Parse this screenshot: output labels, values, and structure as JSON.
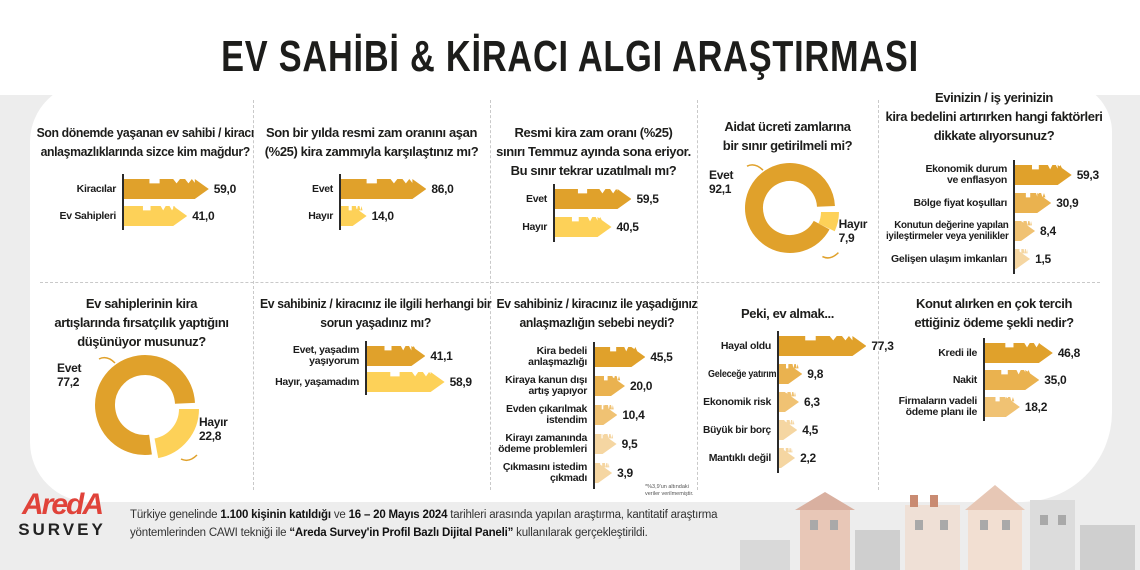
{
  "title": "EV SAHİBİ & KİRACI ALGI ARAŞTIRMASI",
  "colors": {
    "dark": "#e0a12b",
    "yellow": "#fdd158",
    "mid": "#eab24f",
    "light": "#f0c273",
    "lighter": "#f5d6a2",
    "brand_red": "#e0433a"
  },
  "chart_data": [
    {
      "type": "bar",
      "question": "Son dönemde yaşanan ev sahibi / kiracı\nanlaşmazlıklarında sizce kim mağdur?",
      "categories": [
        "Kiracılar",
        "Ev Sahipleri"
      ],
      "values": [
        59.0,
        41.0
      ],
      "labels": [
        "59,0",
        "41,0"
      ]
    },
    {
      "type": "bar",
      "question": "Son bir yılda resmi zam oranını aşan\n(%25) kira zammıyla karşılaştınız mı?",
      "categories": [
        "Evet",
        "Hayır"
      ],
      "values": [
        86.0,
        14.0
      ],
      "labels": [
        "86,0",
        "14,0"
      ]
    },
    {
      "type": "bar",
      "question": "Resmi kira zam oranı (%25)\nsınırı Temmuz ayında sona eriyor.\nBu sınır tekrar uzatılmalı mı?",
      "categories": [
        "Evet",
        "Hayır"
      ],
      "values": [
        59.5,
        40.5
      ],
      "labels": [
        "59,5",
        "40,5"
      ]
    },
    {
      "type": "pie",
      "question": "Aidat ücreti zamlarına\nbir sınır getirilmeli mi?",
      "categories": [
        "Evet",
        "Hayır"
      ],
      "values": [
        92.1,
        7.9
      ],
      "labels": [
        "92,1",
        "7,9"
      ]
    },
    {
      "type": "bar",
      "question": "Evinizin / iş yerinizin\nkira bedelini artırırken hangi faktörleri\ndikkate alıyorsunuz?",
      "categories": [
        "Ekonomik durum\nve enflasyon",
        "Bölge fiyat koşulları",
        "Konutun değerine yapılan\niyileştirmeler veya yenilikler",
        "Gelişen ulaşım imkanları"
      ],
      "values": [
        59.3,
        30.9,
        8.4,
        1.5
      ],
      "labels": [
        "59,3",
        "30,9",
        "8,4",
        "1,5"
      ]
    },
    {
      "type": "pie",
      "question": "Ev sahiplerinin kira\nartışlarında fırsatçılık yaptığını\ndüşünüyor musunuz?",
      "categories": [
        "Evet",
        "Hayır"
      ],
      "values": [
        77.2,
        22.8
      ],
      "labels": [
        "77,2",
        "22,8"
      ]
    },
    {
      "type": "bar",
      "question": "Ev sahibiniz / kiracınız ile ilgili herhangi bir\nsorun yaşadınız mı?",
      "categories": [
        "Evet, yaşadım\nyaşıyorum",
        "Hayır, yaşamadım"
      ],
      "values": [
        41.1,
        58.9
      ],
      "labels": [
        "41,1",
        "58,9"
      ]
    },
    {
      "type": "bar",
      "question": "Ev sahibiniz / kiracınız ile yaşadığınız\nanlaşmazlığın sebebi neydi?",
      "categories": [
        "Kira bedeli\nanlaşmazlığı",
        "Kiraya kanun dışı\nartış yapıyor",
        "Evden çıkarılmak\nistendim",
        "Kirayı zamanında\nödeme problemleri",
        "Çıkmasını istedim\nçıkmadı"
      ],
      "values": [
        45.5,
        20.0,
        10.4,
        9.5,
        3.9
      ],
      "labels": [
        "45,5",
        "20,0",
        "10,4",
        "9,5",
        "3,9"
      ],
      "note": "*%3,9'un altındaki\nveriler verilmemiştir."
    },
    {
      "type": "bar",
      "question": "Peki, ev almak...",
      "categories": [
        "Hayal oldu",
        "Geleceğe yatırım",
        "Ekonomik risk",
        "Büyük bir borç",
        "Mantıklı değil"
      ],
      "values": [
        77.3,
        9.8,
        6.3,
        4.5,
        2.2
      ],
      "labels": [
        "77,3",
        "9,8",
        "6,3",
        "4,5",
        "2,2"
      ]
    },
    {
      "type": "bar",
      "question": "Konut alırken en çok tercih\nettiğiniz ödeme şekli nedir?",
      "categories": [
        "Kredi ile",
        "Nakit",
        "Firmaların vadeli\nödeme planı ile"
      ],
      "values": [
        46.8,
        35.0,
        18.2
      ],
      "labels": [
        "46,8",
        "35,0",
        "18,2"
      ]
    }
  ],
  "footer": {
    "logo": "AredA",
    "logo_sub": "SURVEY",
    "t1": "Türkiye genelinde ",
    "b1": "1.100 kişinin katıldığı",
    "t2": " ve ",
    "b2": "16 – 20 Mayıs 2024",
    "t3": " tarihleri arasında yapılan araştırma, kantitatif araştırma",
    "t4": "yöntemlerinden CAWI tekniği ile ",
    "b3": "“Areda Survey'in Profil Bazlı Dijital Paneli”",
    "t5": " kullanılarak gerçekleştirildi."
  }
}
